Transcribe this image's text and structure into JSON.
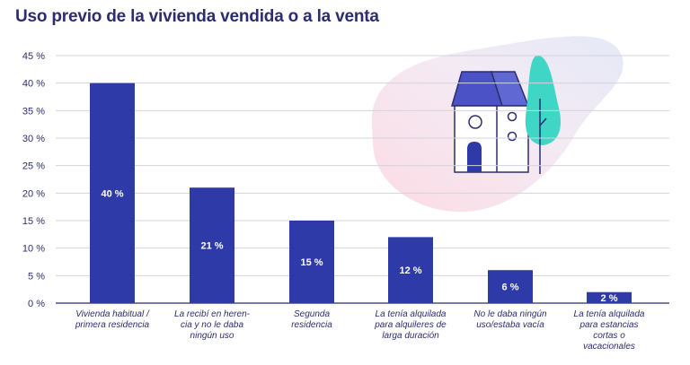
{
  "chart_data": {
    "type": "bar",
    "title": "Uso previo de la vivienda vendida o a la venta",
    "categories": [
      [
        "Vivienda habitual /",
        "primera residencia"
      ],
      [
        "La recibí en heren-",
        "cia y no le daba",
        "ningún uso"
      ],
      [
        "Segunda",
        "residencia"
      ],
      [
        "La tenía alquilada",
        "para alquileres de",
        "larga duración"
      ],
      [
        "No le daba ningún",
        "uso/estaba vacía"
      ],
      [
        "La tenía alquilada",
        "para estancias",
        "cortas o",
        "vacacionales"
      ]
    ],
    "values": [
      40,
      21,
      15,
      12,
      6,
      2
    ],
    "value_labels": [
      "40 %",
      "21 %",
      "15 %",
      "12 %",
      "6 %",
      "2 %"
    ],
    "yticks": [
      "0 %",
      "5 %",
      "10 %",
      "15 %",
      "20 %",
      "25 %",
      "30 %",
      "35 %",
      "40 %",
      "45 %"
    ],
    "ylim": [
      0,
      45
    ],
    "grid": true,
    "xlabel": "",
    "ylabel": "",
    "bar_color": "#2e3aa8",
    "text_color": "#2c2d6e",
    "grid_color": "#d3d3dc"
  },
  "illustration": {
    "icon": "house-and-tree-icon",
    "house_color": "#4a52c6",
    "tree_color": "#3fd6c5",
    "blob_colors": [
      "#fadbe4",
      "#e4e6f5"
    ]
  }
}
